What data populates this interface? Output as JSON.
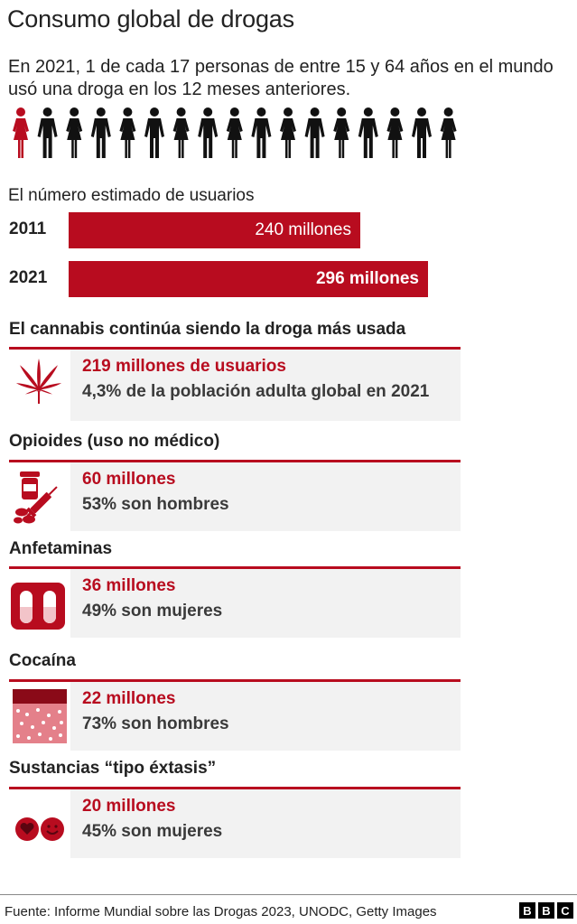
{
  "title": "Consumo global de drogas",
  "intro": "En 2021, 1 de cada 17 personas de entre 15 y 64 años en el mundo usó una droga en los 12 meses anteriores.",
  "people_pictogram": {
    "total": 17,
    "highlighted": 1,
    "highlight_color": "#b80c1f",
    "base_color": "#111111"
  },
  "colors": {
    "accent": "#b80c1f",
    "card_bg": "#f2f2f2"
  },
  "users_section": {
    "heading": "El número estimado de usuarios",
    "bars": [
      {
        "year": "2011",
        "label": "240 millones"
      },
      {
        "year": "2021",
        "label": "296 millones"
      }
    ]
  },
  "chart_data": {
    "type": "bar",
    "categories": [
      "2011",
      "2021"
    ],
    "values": [
      240,
      296
    ],
    "units": "millones",
    "title": "El número estimado de usuarios"
  },
  "drugs": [
    {
      "section": "El cannabis continúa siendo la droga más usada",
      "icon": "cannabis-leaf-icon",
      "value": "219 millones de usuarios",
      "detail": "4,3% de la población adulta global en 2021"
    },
    {
      "section": "Opioides (uso no médico)",
      "icon": "pills-syringe-icon",
      "value": "60 millones",
      "detail": "53% son hombres"
    },
    {
      "section": "Anfetaminas",
      "icon": "capsules-icon",
      "value": "36 millones",
      "detail": "49% son mujeres"
    },
    {
      "section": "Cocaína",
      "icon": "powder-icon",
      "value": "22 millones",
      "detail": "73% son hombres"
    },
    {
      "section": "Sustancias “tipo éxtasis”",
      "icon": "ecstasy-pills-icon",
      "value": "20 millones",
      "detail": "45% son mujeres"
    }
  ],
  "footer": {
    "source": "Fuente: Informe Mundial sobre las Drogas 2023, UNODC, Getty Images",
    "logo": [
      "B",
      "B",
      "C"
    ]
  }
}
